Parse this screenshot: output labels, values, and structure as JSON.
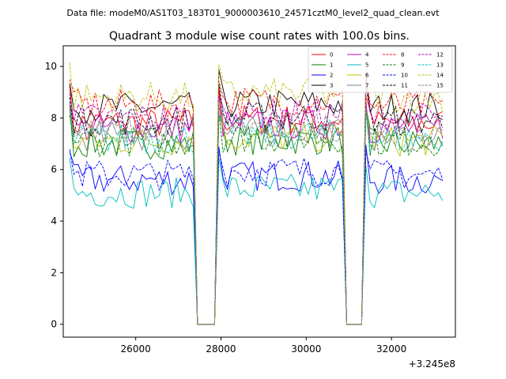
{
  "header": {
    "data_file": "Data file: modeM0/AS1T03_183T01_9000003610_24571cztM0_level2_quad_clean.evt",
    "title": "Quadrant 3 module wise count rates with 100.0s bins."
  },
  "chart_data": {
    "type": "line",
    "title": "Quadrant 3 module wise count rates with 100.0s bins.",
    "x_offset_label": "+3.245e8",
    "xlim": [
      24300,
      33500
    ],
    "ylim": [
      -0.5,
      10.8
    ],
    "xticks": [
      26000,
      28000,
      30000,
      32000
    ],
    "xtick_labels": [
      "26000",
      "28000",
      "30000",
      "32000"
    ],
    "yticks": [
      0,
      2,
      4,
      6,
      8,
      10
    ],
    "ytick_labels": [
      "0",
      "2",
      "4",
      "6",
      "8",
      "10"
    ],
    "grid": false,
    "legend_position": "top-right",
    "legend_columns": 4,
    "segments": [
      {
        "start": 24450,
        "end": 27350
      },
      {
        "start": 27950,
        "end": 30850
      },
      {
        "start": 31400,
        "end": 33200
      }
    ],
    "gap_value": 0,
    "series": [
      {
        "name": "0",
        "color": "#ff0000",
        "dash": "solid",
        "level": 7.8
      },
      {
        "name": "1",
        "color": "#008000",
        "dash": "solid",
        "level": 7.0
      },
      {
        "name": "2",
        "color": "#0000ff",
        "dash": "solid",
        "level": 5.6
      },
      {
        "name": "3",
        "color": "#000000",
        "dash": "solid",
        "level": 8.4
      },
      {
        "name": "4",
        "color": "#bf00bf",
        "dash": "solid",
        "level": 7.6
      },
      {
        "name": "5",
        "color": "#00bfbf",
        "dash": "solid",
        "level": 5.1
      },
      {
        "name": "6",
        "color": "#bfbf00",
        "dash": "solid",
        "level": 7.1
      },
      {
        "name": "7",
        "color": "#808080",
        "dash": "solid",
        "level": 7.3
      },
      {
        "name": "8",
        "color": "#ff0000",
        "dash": "dashed",
        "level": 8.5
      },
      {
        "name": "9",
        "color": "#008000",
        "dash": "dashed",
        "level": 7.1
      },
      {
        "name": "10",
        "color": "#0000ff",
        "dash": "dashed",
        "level": 5.8
      },
      {
        "name": "11",
        "color": "#000000",
        "dash": "dashed",
        "level": 7.9
      },
      {
        "name": "12",
        "color": "#bf00bf",
        "dash": "dashed",
        "level": 8.0
      },
      {
        "name": "13",
        "color": "#00bfbf",
        "dash": "dashed",
        "level": 7.2
      },
      {
        "name": "14",
        "color": "#bfbf00",
        "dash": "dashed",
        "level": 8.8
      },
      {
        "name": "15",
        "color": "#808080",
        "dash": "dashed",
        "level": 7.5
      }
    ]
  }
}
